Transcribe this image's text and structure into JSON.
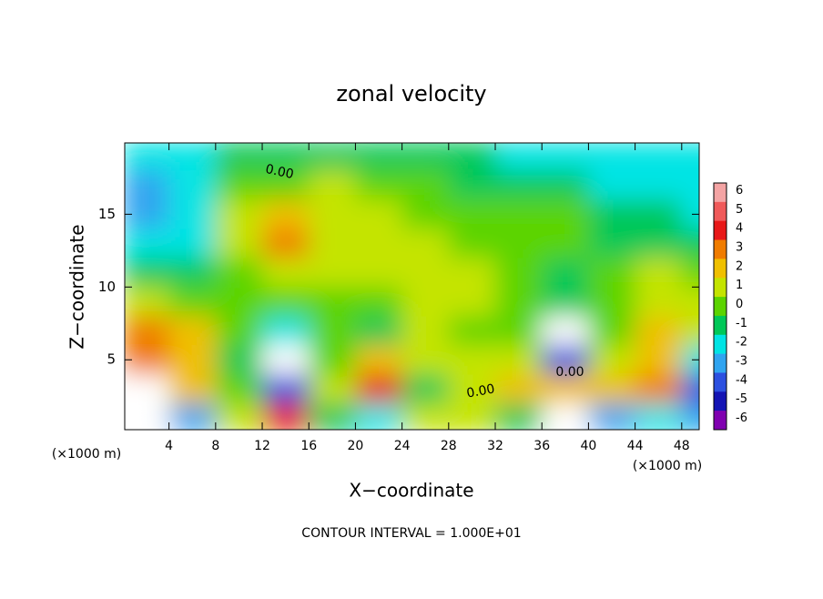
{
  "chart_data": {
    "type": "contour",
    "title": "zonal velocity",
    "x_label": "X−coordinate",
    "y_label": "Z−coordinate",
    "x_unit_left": "(×1000 m)",
    "x_unit_right": "(×1000 m)",
    "footer": "CONTOUR INTERVAL = 1.000E+01",
    "annotations": [
      "0.00",
      "0.00",
      "0.00"
    ],
    "x": [
      2,
      6,
      10,
      14,
      18,
      22,
      26,
      30,
      34,
      38,
      42,
      46,
      50
    ],
    "y": [
      19,
      17,
      15,
      13,
      11,
      9,
      7,
      5,
      3,
      1
    ],
    "z": [
      [
        -2,
        -2,
        -1,
        -1,
        -1,
        -1,
        -1,
        -1,
        -2,
        -2,
        -2,
        -2,
        -2
      ],
      [
        -3,
        -2,
        0,
        0,
        1,
        0,
        0,
        -1,
        -1,
        -1,
        -2,
        -2,
        -2
      ],
      [
        -3,
        -2,
        1,
        2,
        1,
        1,
        0,
        0,
        0,
        0,
        -1,
        -1,
        -2
      ],
      [
        -2,
        -2,
        1,
        3,
        1,
        1,
        1,
        0,
        0,
        0,
        -1,
        -1,
        -1
      ],
      [
        -1,
        -1,
        0,
        1,
        1,
        1,
        1,
        1,
        0,
        -1,
        0,
        1,
        0
      ],
      [
        1,
        0,
        0,
        0,
        0,
        0,
        1,
        1,
        0,
        -1,
        0,
        1,
        1
      ],
      [
        3,
        2,
        0,
        -2,
        0,
        -1,
        1,
        0,
        0,
        -7,
        0,
        2,
        1
      ],
      [
        3,
        2,
        -1,
        -7,
        0,
        2,
        1,
        1,
        1,
        -4,
        1,
        2,
        -2
      ],
      [
        7,
        2,
        0,
        -4,
        1,
        4,
        -1,
        1,
        2,
        2,
        2,
        3,
        -4
      ],
      [
        7,
        -3,
        1,
        4,
        -1,
        -2,
        1,
        1,
        -1,
        7,
        -3,
        -2,
        -3
      ]
    ],
    "levels": [
      6,
      5,
      4,
      3,
      2,
      1,
      0,
      -1,
      -2,
      -3,
      -4,
      -5,
      -6
    ],
    "colors": [
      "#f4a4a4",
      "#f05a5a",
      "#e81818",
      "#f07c00",
      "#f0c000",
      "#c4e400",
      "#5cd400",
      "#00c858",
      "#00e4e4",
      "#30a4f0",
      "#2c50e0",
      "#1414b4",
      "#8000b0"
    ],
    "xlim": [
      0.2,
      49.5
    ],
    "ylim": [
      0.2,
      19.9
    ],
    "xticks": [
      4,
      8,
      12,
      16,
      20,
      24,
      28,
      32,
      36,
      40,
      44,
      48
    ],
    "yticks": [
      5,
      10,
      15
    ]
  }
}
